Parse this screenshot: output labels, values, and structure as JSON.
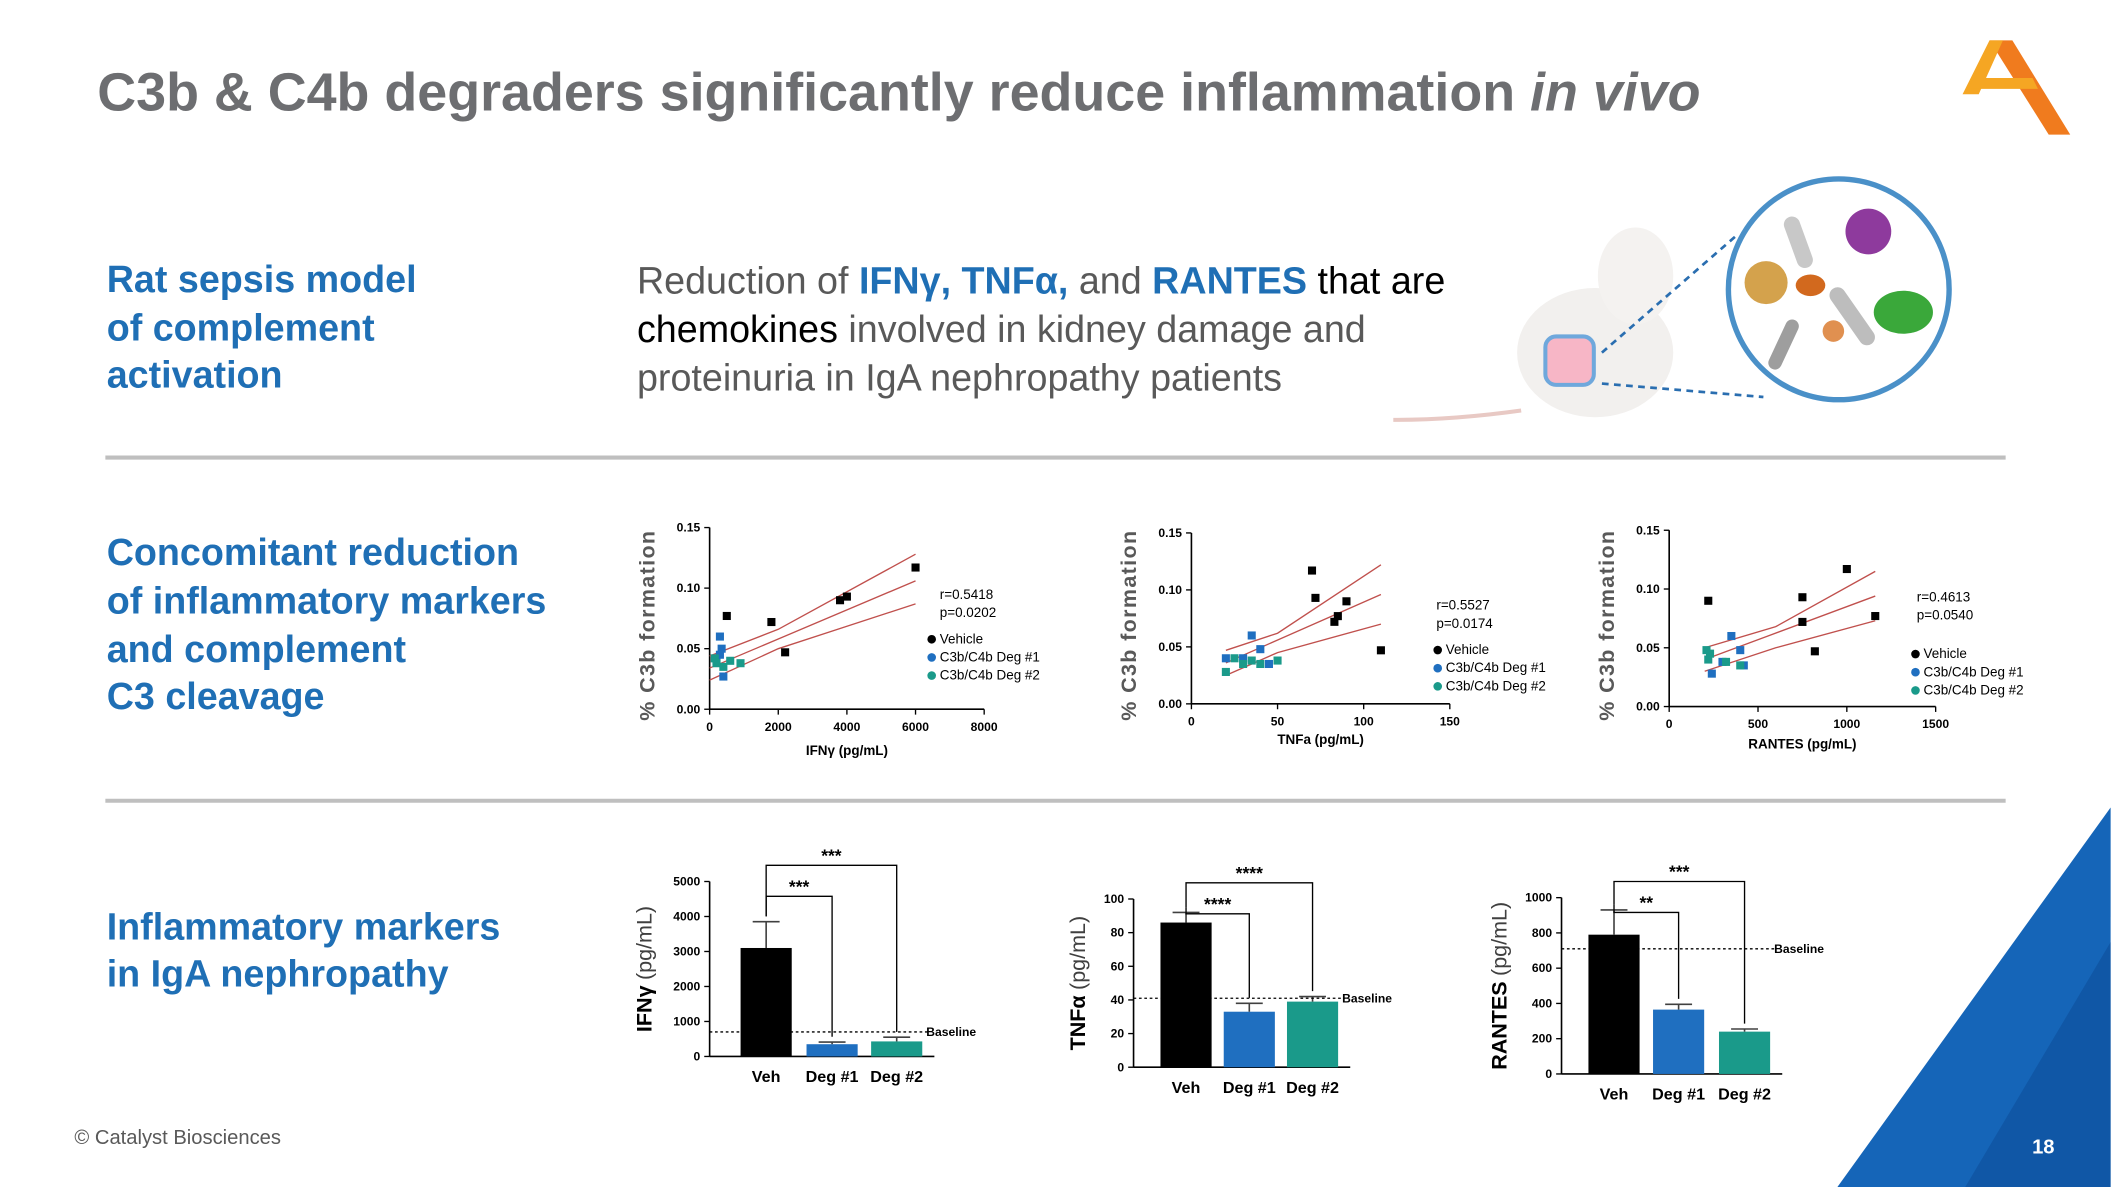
{
  "slide": {
    "title": [
      "C3b & C4b degraders significantly reduce inflammation ",
      "in vivo"
    ],
    "sections": [
      [
        "Rat sepsis model",
        "of complement",
        "activation"
      ],
      [
        "Concomitant reduction",
        "of inflammatory markers",
        "and complement",
        "C3 cleavage"
      ],
      [
        "Inflammatory markers",
        "in IgA nephropathy"
      ]
    ],
    "description": [
      [
        {
          "text": "Reduction of ",
          "style": "grey"
        },
        {
          "text": "IFNγ, TNFα,",
          "style": "blue"
        },
        {
          "text": " and ",
          "style": "grey"
        },
        {
          "text": "RANTES",
          "style": "blue"
        },
        {
          "text": " that are",
          "style": "black"
        }
      ],
      [
        {
          "text": "chemokines",
          "style": "black"
        },
        {
          "text": " involved in kidney damage and",
          "style": "grey"
        }
      ],
      [
        {
          "text": "proteinuria in IgA nephropathy patients",
          "style": "grey"
        }
      ]
    ],
    "footer": "© Catalyst Biosciences",
    "page_number": "18"
  },
  "chart_data": [
    {
      "type": "scatter",
      "x_label": "IFNγ (pg/mL)",
      "y_label": "% C3b formation",
      "xlim": [
        0,
        8000
      ],
      "xticks": [
        0,
        2000,
        4000,
        6000,
        8000
      ],
      "ylim": [
        0,
        0.15
      ],
      "yticks": [
        {
          "value": 0,
          "label": "0.00"
        },
        0.05,
        {
          "value": 0.1,
          "label": "0.10"
        },
        0.15
      ],
      "stats": [
        "r=0.5418",
        "p=0.0202"
      ],
      "series": [
        {
          "name": "Vehicle",
          "color": "#000000",
          "x": [
            500,
            1800,
            2200,
            3800,
            4000,
            6000
          ],
          "values": [
            0.077,
            0.072,
            0.047,
            0.09,
            0.093,
            0.117
          ]
        },
        {
          "name": "C3b/C4b Deg #1",
          "color": "#1f6fc0",
          "x": [
            300,
            350,
            400,
            200,
            300
          ],
          "values": [
            0.06,
            0.05,
            0.027,
            0.04,
            0.045
          ]
        },
        {
          "name": "C3b/C4b Deg #2",
          "color": "#1a9a8a",
          "x": [
            200,
            400,
            600,
            900,
            150
          ],
          "values": [
            0.038,
            0.035,
            0.04,
            0.038,
            0.042
          ]
        }
      ],
      "fit_lines": [
        {
          "color": "#c0504d",
          "x": [
            0,
            6000
          ],
          "values": [
            0.034,
            0.106
          ]
        },
        {
          "color": "#c0504d",
          "x": [
            0,
            2000,
            6000
          ],
          "values": [
            0.044,
            0.066,
            0.128
          ]
        },
        {
          "color": "#c0504d",
          "x": [
            0,
            2000,
            6000
          ],
          "values": [
            0.024,
            0.05,
            0.087
          ]
        }
      ]
    },
    {
      "type": "scatter",
      "x_label": "TNFa (pg/mL)",
      "y_label": "% C3b formation",
      "xlim": [
        0,
        150
      ],
      "xticks": [
        0,
        50,
        100,
        150
      ],
      "ylim": [
        0,
        0.15
      ],
      "yticks": [
        {
          "value": 0,
          "label": "0.00"
        },
        0.05,
        {
          "value": 0.1,
          "label": "0.10"
        },
        0.15
      ],
      "stats": [
        "r=0.5527",
        "p=0.0174"
      ],
      "series": [
        {
          "name": "Vehicle",
          "color": "#000000",
          "x": [
            70,
            72,
            90,
            85,
            83,
            110
          ],
          "values": [
            0.117,
            0.093,
            0.09,
            0.077,
            0.072,
            0.047
          ]
        },
        {
          "name": "C3b/C4b Deg #1",
          "color": "#1f6fc0",
          "x": [
            35,
            20,
            30,
            40,
            45
          ],
          "values": [
            0.06,
            0.04,
            0.04,
            0.048,
            0.035
          ]
        },
        {
          "name": "C3b/C4b Deg #2",
          "color": "#1a9a8a",
          "x": [
            20,
            30,
            35,
            50,
            40,
            25
          ],
          "values": [
            0.028,
            0.035,
            0.038,
            0.038,
            0.035,
            0.04
          ]
        }
      ],
      "fit_lines": [
        {
          "color": "#c0504d",
          "x": [
            20,
            110
          ],
          "values": [
            0.036,
            0.096
          ]
        },
        {
          "color": "#c0504d",
          "x": [
            20,
            50,
            110
          ],
          "values": [
            0.047,
            0.062,
            0.122
          ]
        },
        {
          "color": "#c0504d",
          "x": [
            20,
            50,
            110
          ],
          "values": [
            0.025,
            0.045,
            0.07
          ]
        }
      ]
    },
    {
      "type": "scatter",
      "x_label": "RANTES (pg/mL)",
      "y_label": "% C3b formation",
      "xlim": [
        0,
        1500
      ],
      "xticks": [
        0,
        500,
        1000,
        1500
      ],
      "ylim": [
        0,
        0.15
      ],
      "yticks": [
        {
          "value": 0,
          "label": "0.00"
        },
        0.05,
        {
          "value": 0.1,
          "label": "0.10"
        },
        0.15
      ],
      "stats": [
        "r=0.4613",
        "p=0.0540"
      ],
      "series": [
        {
          "name": "Vehicle",
          "color": "#000000",
          "x": [
            220,
            750,
            1000,
            1160,
            750,
            820
          ],
          "values": [
            0.09,
            0.093,
            0.117,
            0.077,
            0.072,
            0.047
          ]
        },
        {
          "name": "C3b/C4b Deg #1",
          "color": "#1f6fc0",
          "x": [
            350,
            240,
            400,
            420,
            300
          ],
          "values": [
            0.06,
            0.028,
            0.048,
            0.035,
            0.038
          ]
        },
        {
          "name": "C3b/C4b Deg #2",
          "color": "#1a9a8a",
          "x": [
            220,
            230,
            320,
            400,
            210
          ],
          "values": [
            0.04,
            0.045,
            0.038,
            0.035,
            0.048
          ]
        }
      ],
      "fit_lines": [
        {
          "color": "#c0504d",
          "x": [
            200,
            1160
          ],
          "values": [
            0.04,
            0.094
          ]
        },
        {
          "color": "#c0504d",
          "x": [
            200,
            600,
            1160
          ],
          "values": [
            0.05,
            0.068,
            0.115
          ]
        },
        {
          "color": "#c0504d",
          "x": [
            200,
            600,
            1160
          ],
          "values": [
            0.03,
            0.05,
            0.073
          ]
        }
      ]
    },
    {
      "type": "bar",
      "y_label": [
        "IFNγ",
        "(pg/mL)"
      ],
      "categories": [
        "Veh",
        "Deg #1",
        "Deg #2"
      ],
      "values": [
        3100,
        350,
        430
      ],
      "errors": [
        750,
        60,
        120
      ],
      "colors": [
        "#000000",
        "#1f6fc0",
        "#1a9a8a"
      ],
      "ylim": [
        0,
        5000
      ],
      "yticks": [
        0,
        1000,
        2000,
        3000,
        4000,
        5000
      ],
      "baseline": {
        "label": "Baseline",
        "value": 700
      },
      "comparisons": [
        {
          "label": "***",
          "groups": [
            "Veh",
            "Deg #2"
          ]
        },
        {
          "label": "***",
          "groups": [
            "Veh",
            "Deg #1"
          ]
        }
      ]
    },
    {
      "type": "bar",
      "y_label": [
        "TNFα",
        "(pg/mL)"
      ],
      "categories": [
        "Veh",
        "Deg #1",
        "Deg #2"
      ],
      "values": [
        86,
        33,
        39
      ],
      "errors": [
        6,
        5,
        3
      ],
      "colors": [
        "#000000",
        "#1f6fc0",
        "#1a9a8a"
      ],
      "ylim": [
        0,
        100
      ],
      "yticks": [
        0,
        20,
        40,
        60,
        80,
        100
      ],
      "baseline": {
        "label": "Baseline",
        "value": 41
      },
      "comparisons": [
        {
          "label": "****",
          "groups": [
            "Veh",
            "Deg #2"
          ]
        },
        {
          "label": "****",
          "groups": [
            "Veh",
            "Deg #1"
          ]
        }
      ]
    },
    {
      "type": "bar",
      "y_label": [
        "RANTES",
        "(pg/mL)"
      ],
      "categories": [
        "Veh",
        "Deg #1",
        "Deg #2"
      ],
      "values": [
        790,
        365,
        240
      ],
      "errors": [
        140,
        30,
        15
      ],
      "colors": [
        "#000000",
        "#1f6fc0",
        "#1a9a8a"
      ],
      "ylim": [
        0,
        1000
      ],
      "yticks": [
        0,
        200,
        400,
        600,
        800,
        1000
      ],
      "baseline": {
        "label": "Baseline",
        "value": 710
      },
      "comparisons": [
        {
          "label": "***",
          "groups": [
            "Veh",
            "Deg #2"
          ]
        },
        {
          "label": "**",
          "groups": [
            "Veh",
            "Deg #1"
          ]
        }
      ]
    }
  ]
}
